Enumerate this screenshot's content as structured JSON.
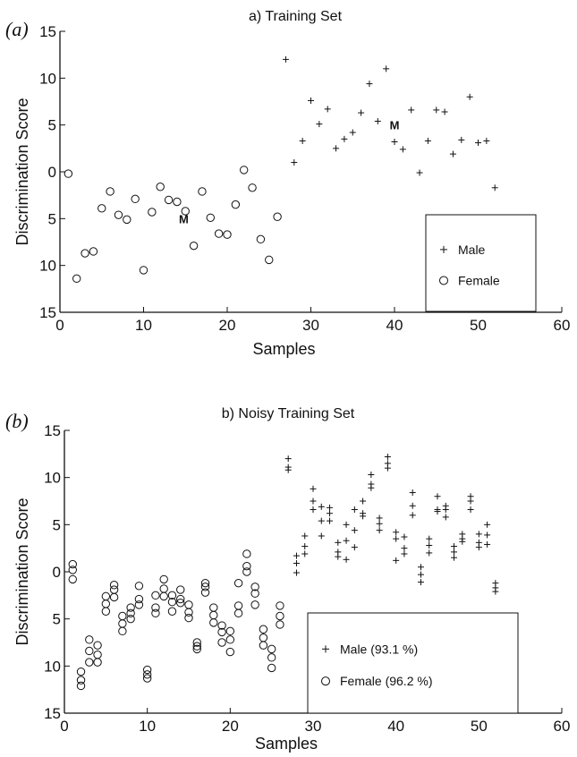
{
  "chart_data": [
    {
      "type": "scatter",
      "panel_label": "(a)",
      "title": "a)  Training Set",
      "xlabel": "Samples",
      "ylabel": "Discrimination Score",
      "xlim": [
        0,
        60
      ],
      "ylim": [
        -15,
        15
      ],
      "xticks": [
        "0",
        "10",
        "20",
        "30",
        "40",
        "50",
        "60"
      ],
      "yticks": [
        "15",
        "10",
        "5",
        "0",
        "5",
        "10",
        "15"
      ],
      "legend": {
        "position": "lower-right"
      },
      "series": [
        {
          "name": "Male",
          "marker": "plus",
          "x": [
            27,
            28,
            29,
            30,
            31,
            32,
            33,
            34,
            35,
            36,
            37,
            38,
            39,
            40,
            41,
            42,
            43,
            44,
            45,
            46,
            47,
            48,
            49,
            50,
            51,
            52
          ],
          "y": [
            12,
            1,
            3.3,
            7.6,
            5.1,
            6.7,
            2.5,
            3.5,
            4.2,
            6.3,
            9.4,
            5.4,
            11,
            3.2,
            2.4,
            6.6,
            -0.1,
            3.3,
            6.6,
            6.4,
            1.9,
            3.4,
            8,
            3.1,
            3.3,
            -1.7
          ]
        },
        {
          "name": "Female",
          "marker": "circle",
          "x": [
            1,
            2,
            3,
            4,
            5,
            6,
            7,
            8,
            9,
            10,
            11,
            12,
            13,
            14,
            15,
            16,
            17,
            18,
            19,
            20,
            21,
            22,
            23,
            24,
            25,
            26
          ],
          "y": [
            -0.2,
            -11.4,
            -8.7,
            -8.5,
            -3.9,
            -2.1,
            -4.6,
            -5.1,
            -2.9,
            -10.5,
            -4.3,
            -1.6,
            -3,
            -3.2,
            -4.2,
            -7.9,
            -2.1,
            -4.9,
            -6.6,
            -6.7,
            -3.5,
            0.2,
            -1.7,
            -7.2,
            -9.4,
            -4.8
          ]
        }
      ],
      "annotations": [
        {
          "text": "M",
          "x": 14.8,
          "y": -5
        },
        {
          "text": "M",
          "x": 40,
          "y": 5
        }
      ]
    },
    {
      "type": "scatter",
      "panel_label": "(b)",
      "title": "b)  Noisy Training Set",
      "xlabel": "Samples",
      "ylabel": "Discrimination Score",
      "xlim": [
        0,
        60
      ],
      "ylim": [
        -15,
        15
      ],
      "xticks": [
        "0",
        "10",
        "20",
        "30",
        "40",
        "50",
        "60"
      ],
      "yticks": [
        "15",
        "10",
        "5",
        "0",
        "5",
        "10",
        "15"
      ],
      "legend": {
        "position": "lower-right"
      },
      "series": [
        {
          "name": "Male (93.1 %)",
          "marker": "plus",
          "x": [
            27,
            27,
            27,
            28,
            28,
            28,
            29,
            29,
            29,
            30,
            30,
            30,
            31,
            31,
            31,
            32,
            32,
            32,
            33,
            33,
            33,
            34,
            34,
            34,
            35,
            35,
            35,
            36,
            36,
            36,
            37,
            37,
            37,
            38,
            38,
            38,
            39,
            39,
            39,
            40,
            40,
            40,
            41,
            41,
            41,
            42,
            42,
            42,
            43,
            43,
            43,
            44,
            44,
            44,
            45,
            45,
            45,
            46,
            46,
            46,
            47,
            47,
            47,
            48,
            48,
            48,
            49,
            49,
            49,
            50,
            50,
            50,
            51,
            51,
            51,
            52,
            52,
            52
          ],
          "y": [
            12,
            11.1,
            10.8,
            1.7,
            0.9,
            -0.1,
            3.8,
            2.7,
            1.9,
            8.8,
            7.5,
            6.6,
            6.9,
            5.4,
            3.8,
            6.8,
            6.2,
            5.4,
            3.1,
            2.1,
            1.6,
            5,
            3.3,
            1.3,
            6.6,
            4.4,
            2.6,
            7.5,
            6.2,
            5.9,
            10.3,
            9.3,
            8.9,
            5.7,
            5.1,
            4.4,
            12.2,
            11.5,
            11,
            4.2,
            3.5,
            1.2,
            3.7,
            2.5,
            1.9,
            8.4,
            7,
            6,
            0.5,
            -0.3,
            -1.1,
            3.5,
            2.8,
            2,
            8,
            6.6,
            6.4,
            7,
            6.6,
            5.8,
            2.7,
            2.1,
            1.5,
            4,
            3.5,
            3.2,
            8,
            7.5,
            6.6,
            4,
            3.1,
            2.6,
            5,
            3.9,
            2.9,
            -1.2,
            -1.7,
            -2.1
          ]
        },
        {
          "name": "Female (96.2 %)",
          "marker": "circle",
          "x": [
            1,
            1,
            1,
            2,
            2,
            2,
            3,
            3,
            3,
            4,
            4,
            4,
            5,
            5,
            5,
            6,
            6,
            6,
            7,
            7,
            7,
            8,
            8,
            8,
            9,
            9,
            9,
            10,
            10,
            10,
            11,
            11,
            11,
            12,
            12,
            12,
            13,
            13,
            13,
            14,
            14,
            14,
            15,
            15,
            15,
            16,
            16,
            16,
            17,
            17,
            17,
            18,
            18,
            18,
            19,
            19,
            19,
            20,
            20,
            20,
            21,
            21,
            21,
            22,
            22,
            22,
            23,
            23,
            23,
            24,
            24,
            24,
            25,
            25,
            25,
            26,
            26,
            26
          ],
          "y": [
            0.8,
            0.2,
            -0.8,
            -10.6,
            -11.5,
            -12.1,
            -7.2,
            -8.4,
            -9.6,
            -7.8,
            -8.8,
            -9.6,
            -2.6,
            -3.4,
            -4.2,
            -1.4,
            -1.9,
            -2.7,
            -4.7,
            -5.5,
            -6.3,
            -3.8,
            -4.4,
            -5,
            -1.5,
            -2.9,
            -3.5,
            -10.4,
            -10.9,
            -11.3,
            -2.5,
            -3.8,
            -4.4,
            -0.8,
            -1.8,
            -2.6,
            -2.5,
            -3.2,
            -4.2,
            -1.9,
            -2.9,
            -3.3,
            -3.5,
            -4.3,
            -4.9,
            -7.5,
            -7.9,
            -8.2,
            -1.2,
            -1.6,
            -2.2,
            -3.8,
            -4.6,
            -5.4,
            -5.7,
            -6.4,
            -7.5,
            -6.3,
            -7.2,
            -8.5,
            -1.2,
            -3.6,
            -4.4,
            1.9,
            0.6,
            0,
            -1.6,
            -2.3,
            -3.5,
            -6.1,
            -7,
            -7.8,
            -8.2,
            -9.1,
            -10.2,
            -3.6,
            -4.7,
            -5.6
          ]
        }
      ]
    }
  ]
}
